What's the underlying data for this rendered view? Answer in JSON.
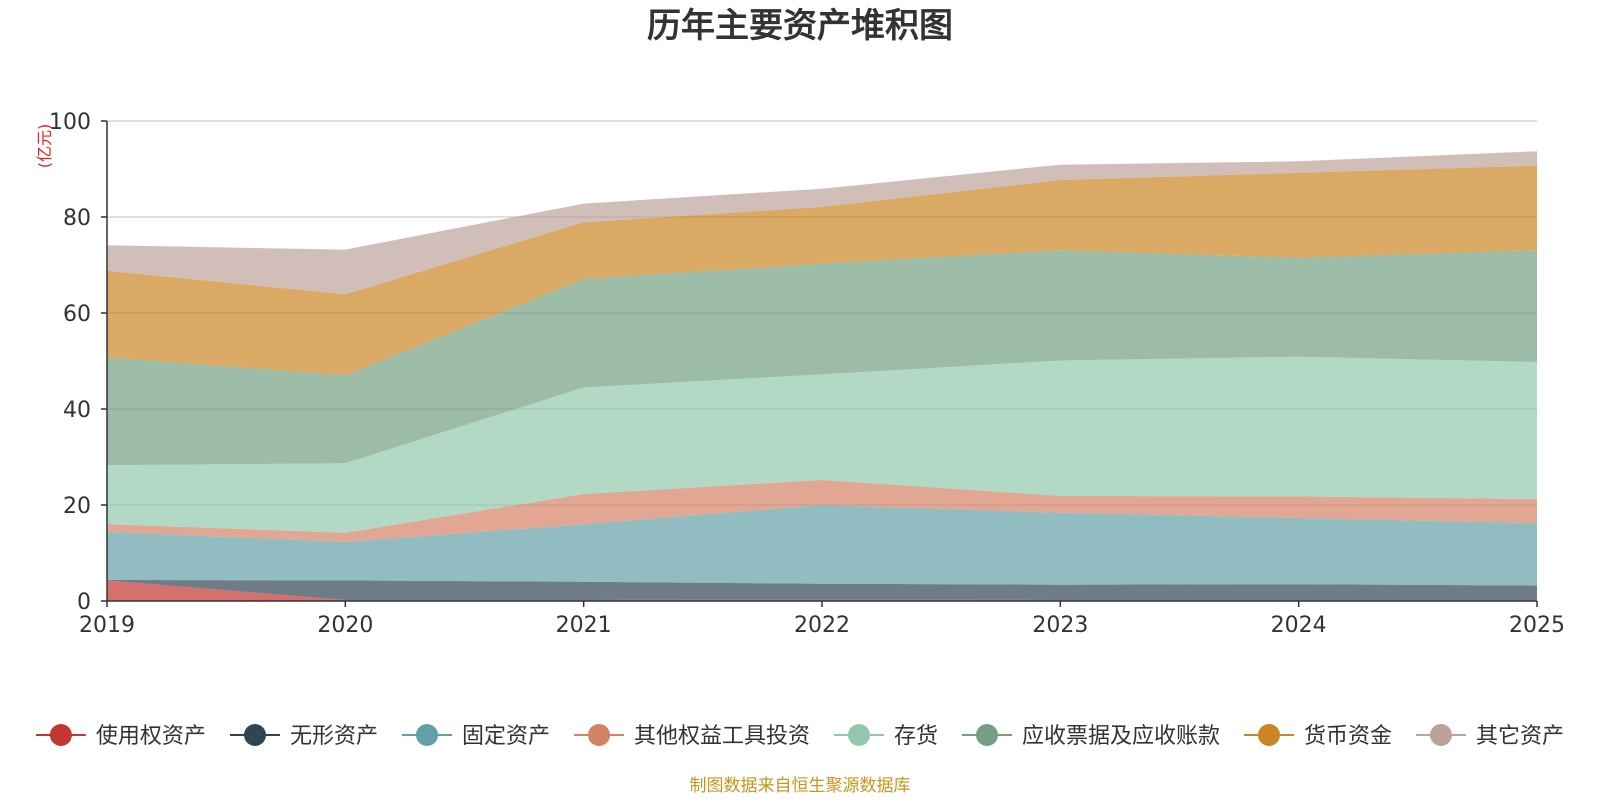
{
  "chart_data": {
    "type": "area",
    "stacked": true,
    "title": "历年主要资产堆积图",
    "unit_label": "(亿元)",
    "x": [
      "2019",
      "2020",
      "2021",
      "2022",
      "2023",
      "2024",
      "2025"
    ],
    "ylim": [
      0,
      100
    ],
    "yticks": [
      0,
      20,
      40,
      60,
      80,
      100
    ],
    "grid": true,
    "legend_position": "bottom",
    "source_note": "制图数据来自恒生聚源数据库",
    "series": [
      {
        "name": "使用权资产",
        "color": "#c23531",
        "values": [
          4.3,
          0.2,
          0.2,
          0.3,
          0.2,
          0.2,
          0.2
        ]
      },
      {
        "name": "无形资产",
        "color": "#2f4554",
        "values": [
          0.1,
          4.1,
          3.8,
          3.3,
          3.2,
          3.3,
          3.0
        ]
      },
      {
        "name": "固定资产",
        "color": "#61a0a8",
        "values": [
          10.0,
          8.0,
          12.0,
          16.4,
          15.0,
          13.8,
          13.0
        ]
      },
      {
        "name": "其他权益工具投资",
        "color": "#d48265",
        "values": [
          1.6,
          1.9,
          6.3,
          5.2,
          3.5,
          4.5,
          5.0
        ]
      },
      {
        "name": "存货",
        "color": "#91c7ae",
        "values": [
          12.3,
          14.5,
          22.2,
          22.0,
          28.2,
          29.1,
          28.6
        ]
      },
      {
        "name": "应收票据及应收账款",
        "color": "#749f83",
        "values": [
          22.5,
          18.3,
          22.6,
          23.1,
          23.0,
          20.6,
          23.3
        ]
      },
      {
        "name": "货币资金",
        "color": "#ca8622",
        "values": [
          18.0,
          16.9,
          11.8,
          11.8,
          14.6,
          17.7,
          17.6
        ]
      },
      {
        "name": "其它资产",
        "color": "#bda29a",
        "values": [
          5.3,
          9.3,
          3.9,
          3.8,
          3.2,
          2.4,
          3.0
        ]
      }
    ]
  }
}
